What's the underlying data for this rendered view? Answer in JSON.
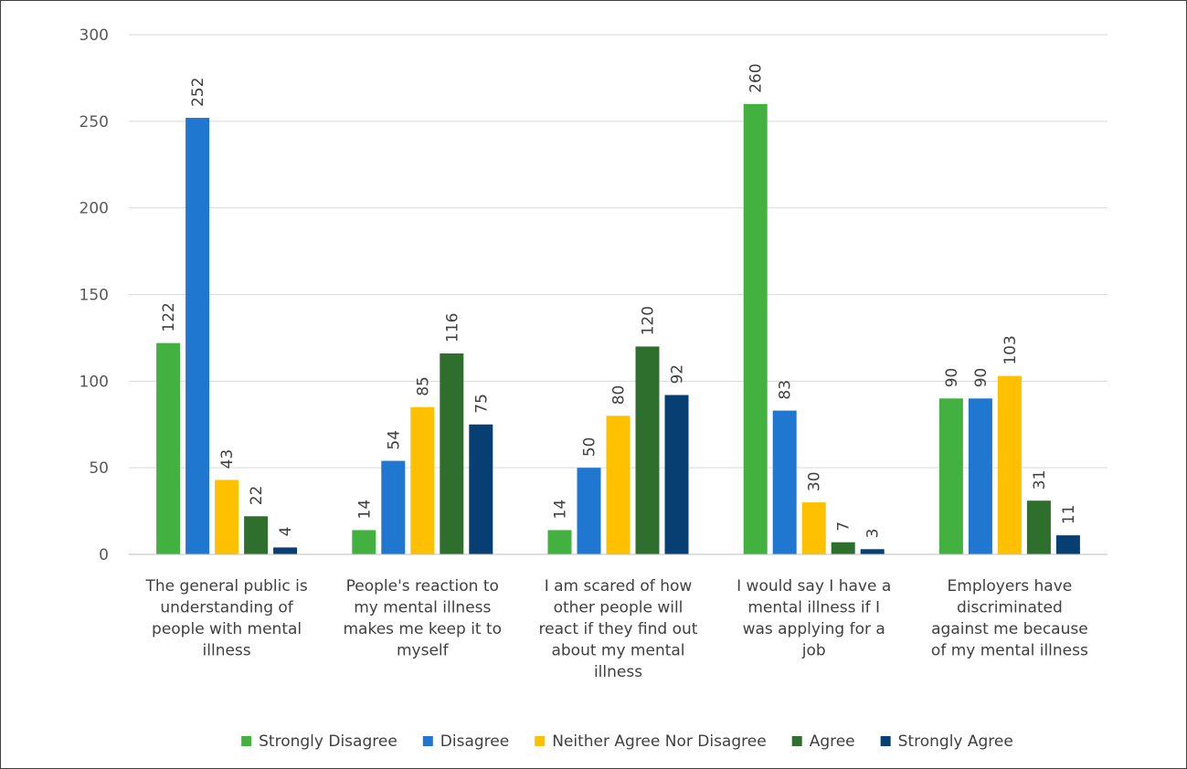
{
  "chart_data": {
    "type": "bar",
    "title": "",
    "xlabel": "",
    "ylabel": "",
    "ylim": [
      0,
      300
    ],
    "yticks": [
      0,
      50,
      100,
      150,
      200,
      250,
      300
    ],
    "grid": true,
    "legend_position": "bottom",
    "categories": [
      [
        "The general public is",
        "understanding of",
        "people with mental",
        "illness"
      ],
      [
        "People's reaction to",
        "my mental illness",
        "makes me keep it to",
        "myself"
      ],
      [
        "I am scared of how",
        "other people will",
        "react if they find out",
        "about my mental",
        "illness"
      ],
      [
        "I would say I have a",
        "mental illness if I",
        "was applying for a",
        "job"
      ],
      [
        "Employers have",
        "discriminated",
        "against me because",
        "of my mental illness"
      ]
    ],
    "series": [
      {
        "name": "Strongly Disagree",
        "color": "#43b13f",
        "values": [
          122,
          14,
          14,
          260,
          90
        ]
      },
      {
        "name": "Disagree",
        "color": "#1f77d0",
        "values": [
          252,
          54,
          50,
          83,
          90
        ]
      },
      {
        "name": "Neither Agree Nor Disagree",
        "color": "#ffc000",
        "values": [
          43,
          85,
          80,
          30,
          103
        ]
      },
      {
        "name": "Agree",
        "color": "#2e6f2e",
        "values": [
          22,
          116,
          120,
          7,
          31
        ]
      },
      {
        "name": "Strongly Agree",
        "color": "#073f73",
        "values": [
          4,
          75,
          92,
          3,
          11
        ]
      }
    ]
  }
}
